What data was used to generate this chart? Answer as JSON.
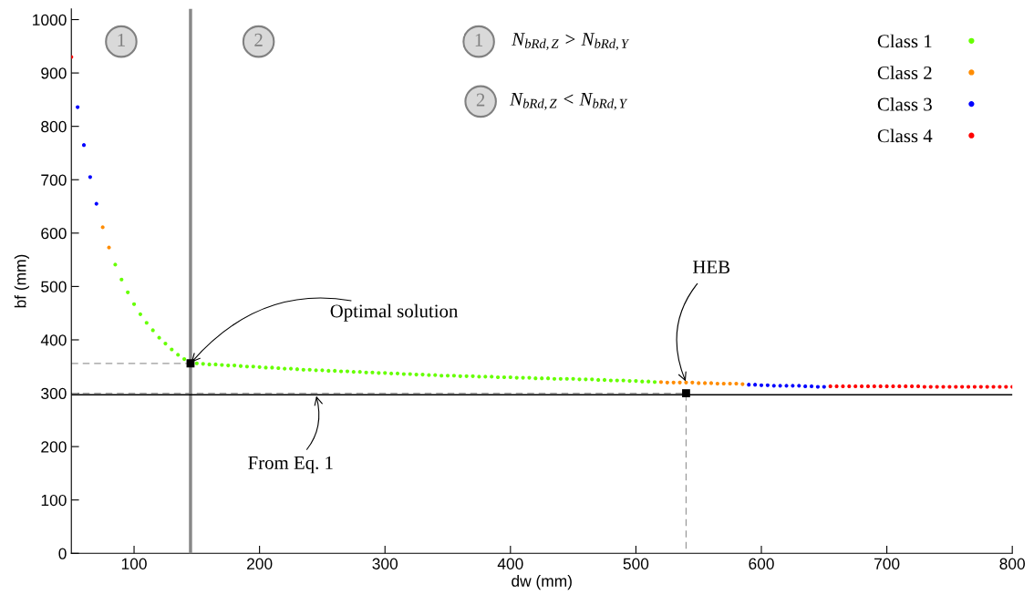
{
  "chart_data": {
    "type": "scatter",
    "xlabel": "dw (mm)",
    "ylabel": "bf (mm)",
    "xlim": [
      50,
      800
    ],
    "xticks": [
      100,
      200,
      300,
      400,
      500,
      600,
      700,
      800
    ],
    "ylim": [
      0,
      1020
    ],
    "yticks": [
      0,
      100,
      200,
      300,
      400,
      500,
      600,
      700,
      800,
      900,
      1000
    ],
    "grid": false,
    "legend": "top right",
    "marker": "circle",
    "series": [
      {
        "name": "Class 1",
        "color": "#66ff00",
        "x": [
          85,
          90,
          95,
          100,
          105,
          110,
          115,
          120,
          125,
          130,
          135,
          140,
          150,
          155,
          160,
          165,
          170,
          175,
          180,
          185,
          190,
          195,
          200,
          205,
          210,
          215,
          220,
          225,
          230,
          235,
          240,
          245,
          250,
          255,
          260,
          265,
          270,
          275,
          280,
          285,
          290,
          295,
          300,
          305,
          310,
          315,
          320,
          325,
          330,
          335,
          340,
          345,
          350,
          355,
          360,
          365,
          370,
          375,
          380,
          385,
          390,
          395,
          400,
          405,
          410,
          415,
          420,
          425,
          430,
          435,
          440,
          445,
          450,
          455,
          460,
          465,
          470,
          475,
          480,
          485,
          490,
          495,
          500,
          505,
          510,
          515
        ],
        "values": [
          541,
          513,
          489,
          467,
          448,
          432,
          418,
          404,
          393,
          382,
          372,
          364,
          356,
          355,
          354,
          354,
          353,
          352,
          352,
          351,
          350,
          350,
          349,
          348,
          348,
          347,
          346,
          346,
          345,
          344,
          344,
          343,
          343,
          342,
          342,
          341,
          341,
          340,
          340,
          339,
          339,
          338,
          338,
          337,
          337,
          336,
          336,
          335,
          335,
          334,
          334,
          333,
          333,
          333,
          332,
          332,
          332,
          331,
          331,
          331,
          330,
          330,
          330,
          329,
          329,
          329,
          328,
          328,
          328,
          327,
          327,
          327,
          327,
          326,
          326,
          326,
          325,
          325,
          324,
          324,
          324,
          323,
          323,
          322,
          322,
          321
        ]
      },
      {
        "name": "Class 2",
        "color": "#ff8c00",
        "x": [
          75,
          80,
          520,
          525,
          530,
          535,
          540,
          545,
          550,
          555,
          560,
          565,
          570,
          575,
          580,
          585
        ],
        "values": [
          611,
          573,
          321,
          320,
          320,
          320,
          320,
          320,
          319,
          319,
          319,
          318,
          318,
          318,
          318,
          317
        ]
      },
      {
        "name": "Class 3",
        "color": "#0000ff",
        "x": [
          55,
          60,
          65,
          70,
          590,
          595,
          600,
          605,
          610,
          615,
          620,
          625,
          630,
          635,
          640,
          645,
          650
        ],
        "values": [
          836,
          765,
          705,
          655,
          316,
          316,
          315,
          315,
          314,
          314,
          314,
          314,
          314,
          313,
          313,
          312,
          312
        ]
      },
      {
        "name": "Class 4",
        "color": "#ff0000",
        "x": [
          50,
          655,
          660,
          665,
          670,
          675,
          680,
          685,
          690,
          695,
          700,
          705,
          710,
          715,
          720,
          725,
          730,
          735,
          740,
          745,
          750,
          755,
          760,
          765,
          770,
          775,
          780,
          785,
          790,
          795,
          800
        ],
        "values": [
          930,
          313,
          313,
          313,
          313,
          313,
          313,
          313,
          313,
          313,
          313,
          313,
          313,
          313,
          313,
          313,
          312,
          312,
          312,
          312,
          312,
          312,
          312,
          312,
          312,
          312,
          312,
          312,
          312,
          312,
          312
        ]
      },
      {
        "type": "line",
        "line_style": "dashed",
        "marker": "none",
        "color": "#999999",
        "x": [
          50,
          145
        ],
        "values": [
          356,
          356
        ]
      },
      {
        "type": "line",
        "line_style": "dashed",
        "marker": "none",
        "color": "#999999",
        "x": [
          50,
          540,
          540
        ],
        "values": [
          300,
          300,
          0
        ]
      },
      {
        "marker": "square",
        "color": "#000000",
        "x": [
          145,
          540
        ],
        "values": [
          356,
          300
        ]
      }
    ],
    "ref_lines": [
      {
        "axis": "x",
        "value": 145,
        "color": "#888888"
      },
      {
        "axis": "y",
        "value": 297,
        "color": "#000000"
      }
    ],
    "annotations": [
      {
        "text": "Optimal solution",
        "x": 145,
        "y": 356
      },
      {
        "text": "HEB",
        "x": 540,
        "y": 320
      },
      {
        "text": "From Eq. 1",
        "x": 245,
        "y": 297
      },
      "1",
      "2",
      "1",
      "N$_{bRd,Z}$ > N$_{bRd,Y}$",
      "2",
      "N$_{bRd,Z}$ < N$_{bRd,Y}$"
    ]
  }
}
